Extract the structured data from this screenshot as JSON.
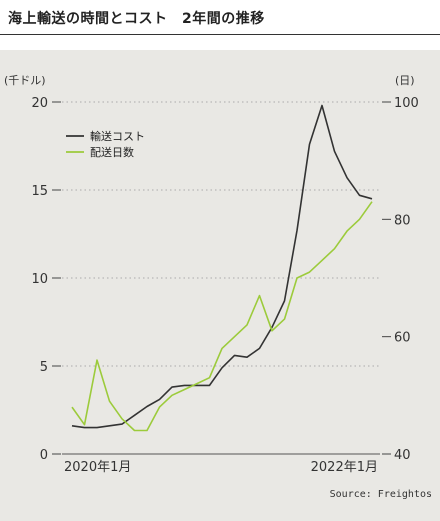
{
  "page": {
    "title": "海上輸送の時間とコスト　2年間の推移",
    "source": "Source: Freightos"
  },
  "colors": {
    "background": "#e9e8e4",
    "cost_line": "#333333",
    "days_line": "#9ccb3b",
    "grid": "#aaaaaa"
  },
  "chart_data": {
    "type": "line",
    "title": "海上輸送の時間とコスト　2年間の推移",
    "x_tick_labels": [
      "2020年1月",
      "2022年1月"
    ],
    "left_axis": {
      "unit": "(千ドル)",
      "ylim": [
        0,
        20
      ],
      "ticks": [
        0,
        5,
        10,
        15,
        20
      ]
    },
    "right_axis": {
      "unit": "(日)",
      "ylim": [
        40,
        100
      ],
      "ticks": [
        40,
        60,
        80,
        100
      ]
    },
    "grid": true,
    "legend_position": "top-left",
    "series": [
      {
        "name": "輸送コスト",
        "axis": "left",
        "color": "#333333",
        "values": [
          1.6,
          1.5,
          1.5,
          1.6,
          1.7,
          2.2,
          2.7,
          3.1,
          3.8,
          3.9,
          3.9,
          3.9,
          4.9,
          5.6,
          5.5,
          6.0,
          7.2,
          8.7,
          12.7,
          17.6,
          19.8,
          17.2,
          15.7,
          14.7,
          14.5
        ]
      },
      {
        "name": "配送日数",
        "axis": "right",
        "color": "#9ccb3b",
        "values": [
          48,
          45,
          56,
          49,
          46,
          44,
          44,
          48,
          50,
          51,
          52,
          53,
          58,
          60,
          62,
          67,
          61,
          63,
          70,
          71,
          73,
          75,
          78,
          80,
          83
        ]
      }
    ]
  }
}
